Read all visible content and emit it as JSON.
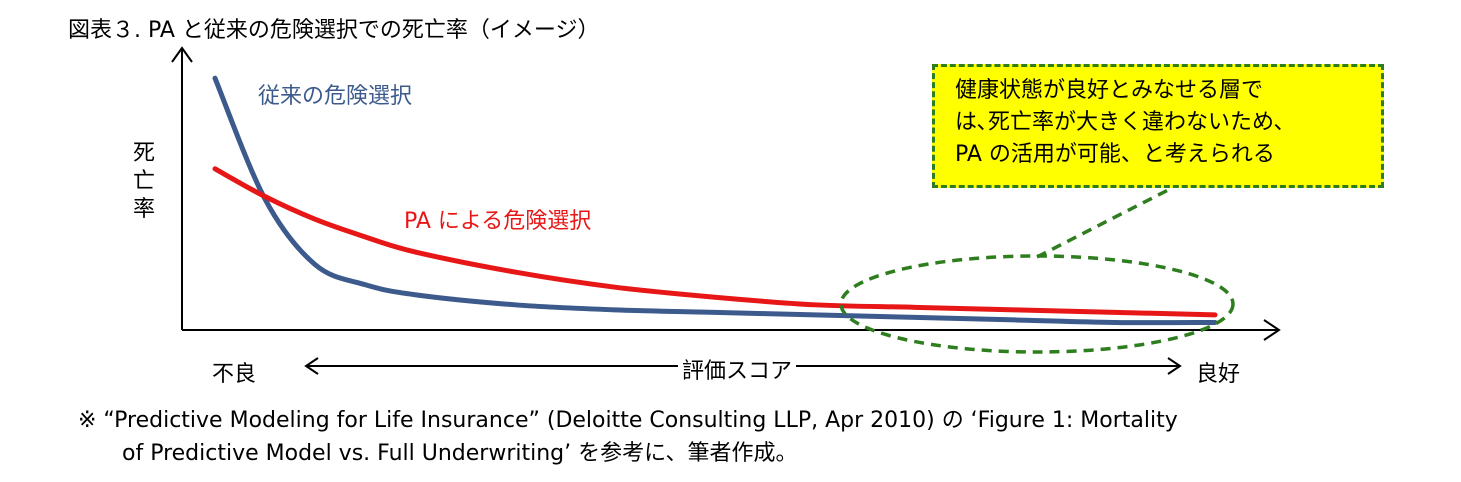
{
  "figure_title": "図表３. PA と従来の危険選択での死亡率（イメージ）",
  "chart_data": {
    "type": "line",
    "title": "図表３. PA と従来の危険選択での死亡率（イメージ）",
    "ylabel": "死亡率",
    "xlabel": "評価スコア",
    "x_left_label": "不良",
    "x_right_label": "良好",
    "x": [
      0,
      0.05,
      0.1,
      0.15,
      0.2,
      0.3,
      0.4,
      0.5,
      0.6,
      0.7,
      0.8,
      0.9,
      1.0
    ],
    "series": [
      {
        "name": "従来の危険選択",
        "color": "#3c5a8c",
        "values": [
          1.0,
          0.52,
          0.26,
          0.18,
          0.14,
          0.1,
          0.08,
          0.07,
          0.06,
          0.05,
          0.04,
          0.03,
          0.03
        ]
      },
      {
        "name": "PA による危険選択",
        "color": "#e81717",
        "values": [
          0.64,
          0.53,
          0.44,
          0.37,
          0.31,
          0.23,
          0.17,
          0.13,
          0.1,
          0.09,
          0.08,
          0.07,
          0.06
        ]
      }
    ],
    "ylim": [
      0,
      1.08
    ],
    "xlim": [
      0,
      1
    ],
    "annotation": {
      "lines": [
        "健康状態が良好とみなせる層で",
        "は､死亡率が大きく違わないため､",
        "PA の活用が可能、と考えられる"
      ],
      "background": "#ffff00",
      "border": "#2e7d1e"
    }
  },
  "footnote": {
    "line1": "※ “Predictive Modeling for Life Insurance” (Deloitte Consulting LLP, Apr 2010) の ‘Figure 1: Mortality",
    "line2": "of Predictive Model vs. Full Underwriting’ を参考に、筆者作成。"
  }
}
